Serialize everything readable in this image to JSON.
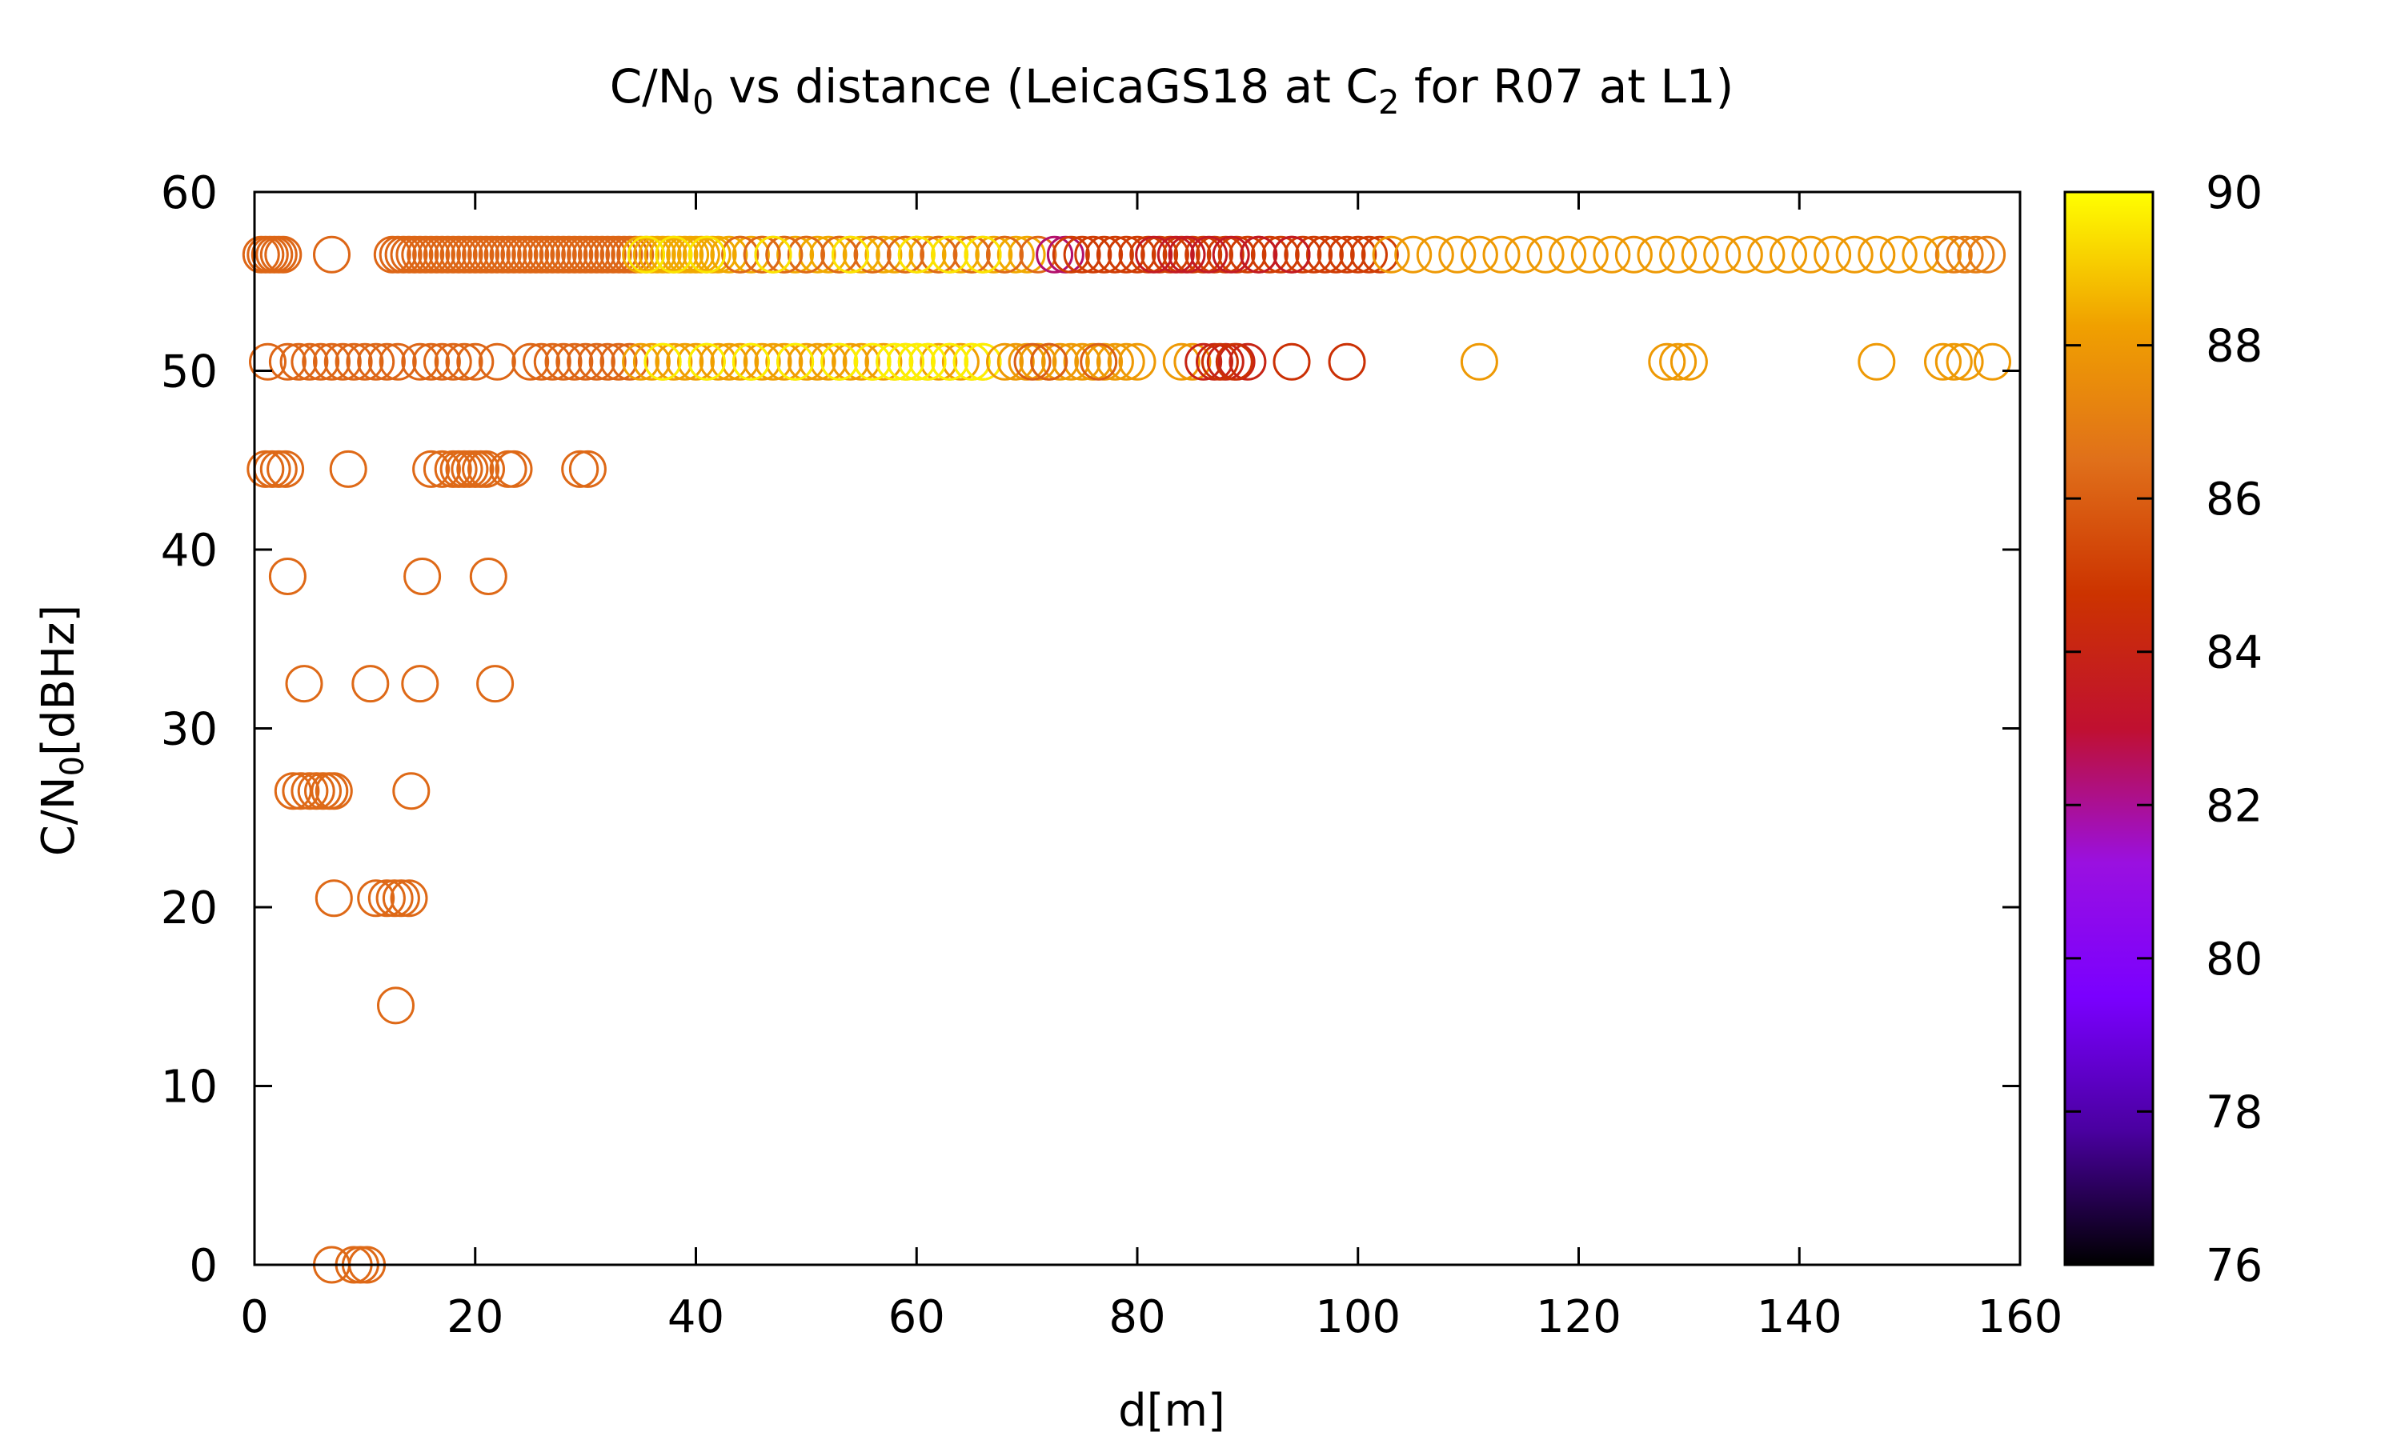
{
  "chart_data": {
    "type": "scatter",
    "title": {
      "prefix": "C/N",
      "sub1": "0",
      "middle": " vs distance (LeicaGS18 at C",
      "sub2": "2",
      "suffix": " for R07 at L1)"
    },
    "xlabel": "d[m]",
    "ylabel": {
      "prefix": "C/N",
      "sub": "0",
      "suffix": "[dBHz]"
    },
    "xlim": [
      0,
      160
    ],
    "ylim": [
      0,
      60
    ],
    "x_ticks": [
      "0",
      "20",
      "40",
      "60",
      "80",
      "100",
      "120",
      "140",
      "160"
    ],
    "y_ticks": [
      "0",
      "10",
      "20",
      "30",
      "40",
      "50",
      "60"
    ],
    "colorbar": {
      "range": [
        76,
        90
      ],
      "ticks": [
        "76",
        "78",
        "80",
        "82",
        "84",
        "86",
        "88",
        "90"
      ],
      "colors": [
        "#000000",
        "#4a00a0",
        "#7a00ff",
        "#9a10e0",
        "#c01030",
        "#cc3300",
        "#e0701a",
        "#f0a000",
        "#ffff00"
      ]
    },
    "marker": "open-circle",
    "point_groups": [
      {
        "y": 56.5,
        "x": [
          0.6,
          1.0,
          1.4,
          1.8,
          2.2,
          2.6,
          7.0,
          12.5,
          13,
          13.5,
          14,
          14.5,
          15,
          15.5,
          16,
          16.5,
          17,
          17.5,
          18,
          18.5,
          19,
          19.5,
          20,
          20.5,
          21,
          21.5,
          22,
          22.5,
          23,
          23.5,
          24,
          24.5,
          25,
          25.5,
          26,
          26.5,
          27,
          27.5,
          28,
          28.5,
          29,
          29.5,
          30,
          30.5,
          31,
          31.5,
          32,
          32.5,
          33,
          33.5,
          34,
          34.5
        ],
        "c": 86.2
      },
      {
        "y": 56.5,
        "x": [
          35,
          35.5,
          36,
          36.5,
          37,
          37.5,
          38,
          38.5,
          39,
          39.5,
          40,
          40.5,
          41,
          41.5,
          42,
          43,
          44,
          45,
          46,
          47,
          48,
          49,
          50,
          51,
          52,
          53,
          54,
          55,
          56,
          57,
          58,
          59,
          60,
          61,
          62,
          63,
          64,
          65,
          66,
          67,
          68,
          69,
          70
        ],
        "c": 88.4
      },
      {
        "y": 56.5,
        "x": [
          44,
          46,
          48,
          50,
          53,
          56,
          59,
          62,
          65,
          68,
          71
        ],
        "c": 86.3
      },
      {
        "y": 56.5,
        "x": [
          35.5,
          38,
          41,
          47,
          54,
          60,
          63,
          66
        ],
        "c": 89.5
      },
      {
        "y": 56.5,
        "x": [
          72.5,
          73.5
        ],
        "c": 82.4
      },
      {
        "y": 56.5,
        "x": [
          74,
          75,
          76,
          77,
          78,
          79,
          80,
          81,
          82,
          83,
          84,
          85,
          86,
          87,
          88,
          89,
          90,
          91,
          92,
          93,
          94,
          95,
          96,
          97,
          98,
          99,
          100,
          101,
          102
        ],
        "c": 85.0
      },
      {
        "y": 56.5,
        "x": [
          81.5,
          83.5,
          84.5,
          86.5,
          88.5,
          91,
          94
        ],
        "c": 83.5
      },
      {
        "y": 56.5,
        "x": [
          103,
          105,
          107,
          109,
          111,
          113,
          115,
          117,
          119,
          121,
          123,
          125,
          127,
          129,
          131,
          133,
          135,
          137,
          139,
          141,
          143,
          145,
          147,
          149,
          151,
          153
        ],
        "c": 88.0
      },
      {
        "y": 56.5,
        "x": [
          154,
          155,
          156,
          157
        ],
        "c": 87.0
      },
      {
        "y": 50.5,
        "x": [
          1.2,
          3,
          4,
          5,
          6,
          7,
          8,
          9,
          10,
          11,
          12,
          13,
          15,
          16,
          17,
          18,
          19,
          20,
          22,
          25,
          26,
          27,
          28,
          29,
          30,
          31,
          32,
          33,
          34
        ],
        "c": 86.2
      },
      {
        "y": 50.5,
        "x": [
          35,
          36,
          37,
          38,
          39,
          40,
          41,
          42,
          43,
          44,
          45,
          46,
          47,
          48,
          49,
          50,
          51,
          52,
          53,
          54,
          55,
          56,
          57,
          58,
          59,
          60,
          61,
          62,
          63,
          64,
          65,
          66
        ],
        "c": 88.2
      },
      {
        "y": 50.5,
        "x": [
          37,
          41,
          45,
          49,
          53,
          56,
          58,
          59,
          60,
          61,
          63,
          65,
          66
        ],
        "c": 89.7
      },
      {
        "y": 50.5,
        "x": [
          68,
          69,
          70,
          71,
          72,
          73,
          74,
          75,
          76,
          77,
          78,
          79,
          80,
          84,
          85,
          111,
          128,
          129,
          130,
          147,
          153,
          154,
          155,
          157.5
        ],
        "c": 88.0
      },
      {
        "y": 50.5,
        "x": [
          70.5,
          72,
          76.5
        ],
        "c": 86.0
      },
      {
        "y": 50.5,
        "x": [
          86,
          87,
          88,
          89,
          90
        ],
        "c": 84.0
      },
      {
        "y": 50.5,
        "x": [
          87.5,
          88.8,
          94,
          99
        ],
        "c": 84.6
      },
      {
        "y": 44.5,
        "x": [
          1.0,
          1.6,
          2.2,
          2.8,
          8.5,
          16,
          17,
          18,
          18.5,
          19,
          19.5,
          20,
          20.5,
          21,
          23,
          23.5,
          29.5,
          30.2
        ],
        "c": 86.3
      },
      {
        "y": 38.5,
        "x": [
          3.0,
          15.2,
          21.2
        ],
        "c": 86.3
      },
      {
        "y": 32.5,
        "x": [
          4.5,
          10.5,
          15,
          21.8
        ],
        "c": 86.3
      },
      {
        "y": 26.5,
        "x": [
          3.5,
          4.2,
          5,
          5.6,
          6.2,
          6.8,
          7.2,
          14.2
        ],
        "c": 86.3
      },
      {
        "y": 20.5,
        "x": [
          7.2,
          11,
          12,
          12.7,
          13.3,
          14
        ],
        "c": 86.3
      },
      {
        "y": 14.5,
        "x": [
          12.8
        ],
        "c": 86.3
      },
      {
        "y": 0,
        "x": [
          7.0,
          9,
          9.6,
          10.2
        ],
        "c": 86.3
      }
    ]
  }
}
